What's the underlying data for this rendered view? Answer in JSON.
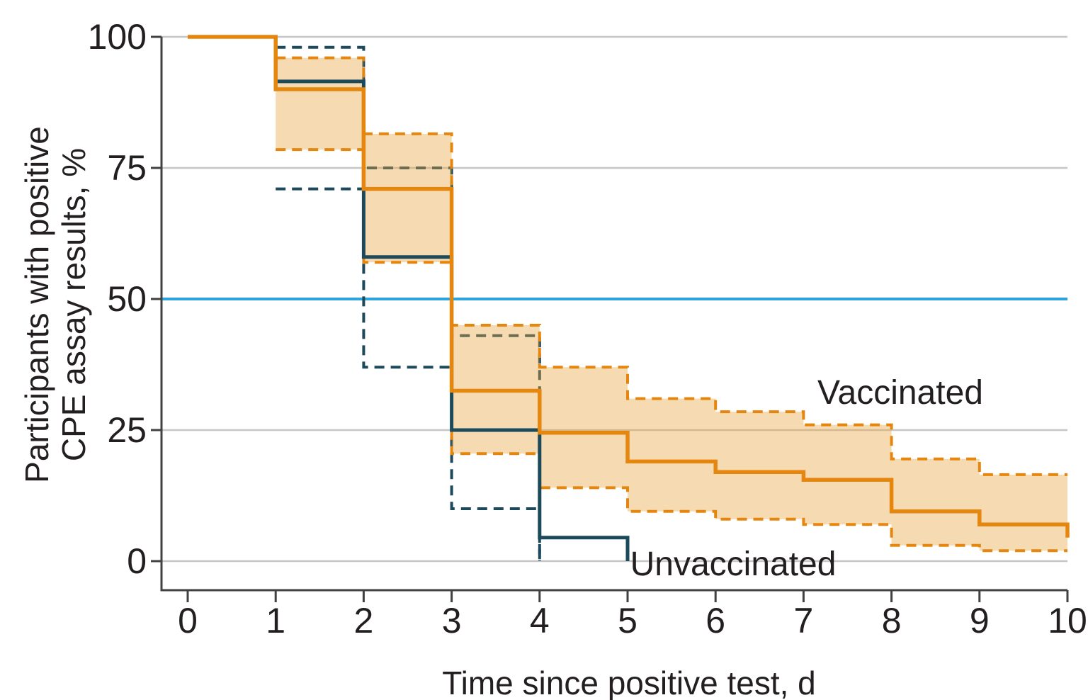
{
  "chart_data": {
    "type": "line",
    "subtype": "kaplan-meier-step",
    "title": "",
    "xlabel": "Time since positive test, d",
    "ylabel_lines": [
      "Participants with positive",
      "CPE assay results, %"
    ],
    "xlim": [
      0,
      10
    ],
    "ylim": [
      0,
      100
    ],
    "xticks": [
      0,
      1,
      2,
      3,
      4,
      5,
      6,
      7,
      8,
      9,
      10
    ],
    "yticks": [
      0,
      25,
      50,
      75,
      100
    ],
    "grid": "horizontal-on",
    "legend_position": "none",
    "reference_line": {
      "y": 50,
      "color": "#2FA3DC"
    },
    "series": [
      {
        "name": "Vaccinated",
        "role": "estimate",
        "line": "solid",
        "color": "#E5870F",
        "width": 5.5,
        "points": [
          [
            0,
            100
          ],
          [
            1,
            90
          ],
          [
            2,
            71
          ],
          [
            3,
            32.5
          ],
          [
            4,
            24.5
          ],
          [
            5,
            19
          ],
          [
            6,
            17
          ],
          [
            7,
            15.5
          ],
          [
            8,
            9.5
          ],
          [
            9,
            7
          ],
          [
            10,
            4.5
          ]
        ]
      },
      {
        "name": "Vaccinated 95% CI upper",
        "role": "ci-upper",
        "line": "dashed",
        "color": "#E5870F",
        "width": 4,
        "points": [
          [
            1,
            96
          ],
          [
            2,
            81.5
          ],
          [
            3,
            45
          ],
          [
            4,
            37
          ],
          [
            5,
            31
          ],
          [
            6,
            28.5
          ],
          [
            7,
            26
          ],
          [
            8,
            19.5
          ],
          [
            9,
            16.5
          ],
          [
            10,
            16.5
          ]
        ]
      },
      {
        "name": "Vaccinated 95% CI lower",
        "role": "ci-lower",
        "line": "dashed",
        "color": "#E5870F",
        "width": 4,
        "points": [
          [
            1,
            78.5
          ],
          [
            2,
            57
          ],
          [
            3,
            20.5
          ],
          [
            4,
            14
          ],
          [
            5,
            9.5
          ],
          [
            6,
            8
          ],
          [
            7,
            7
          ],
          [
            8,
            3
          ],
          [
            9,
            2
          ],
          [
            10,
            2
          ]
        ]
      },
      {
        "name": "Unvaccinated",
        "role": "estimate",
        "line": "solid",
        "color": "#1C4A5A",
        "width": 5,
        "points": [
          [
            0,
            100
          ],
          [
            1,
            91.5
          ],
          [
            2,
            58
          ],
          [
            3,
            25
          ],
          [
            4,
            4.5
          ],
          [
            5,
            0
          ]
        ]
      },
      {
        "name": "Unvaccinated 95% CI upper",
        "role": "ci-upper",
        "line": "dashed",
        "color": "#1C4A5A",
        "width": 4,
        "points": [
          [
            1,
            98
          ],
          [
            2,
            75
          ],
          [
            3,
            43
          ],
          [
            4,
            0
          ]
        ]
      },
      {
        "name": "Unvaccinated 95% CI lower",
        "role": "ci-lower",
        "line": "dashed",
        "color": "#1C4A5A",
        "width": 4,
        "points": [
          [
            1,
            71
          ],
          [
            2,
            37
          ],
          [
            3,
            10
          ],
          [
            4,
            0
          ]
        ]
      }
    ],
    "band": {
      "between": [
        "Vaccinated 95% CI upper",
        "Vaccinated 95% CI lower"
      ],
      "fill": "rgba(233,162,62,0.40)"
    },
    "annotations": [
      {
        "text": "Vaccinated",
        "x": 8.1,
        "y": 30.0
      },
      {
        "text": "Unvaccinated",
        "x": 6.2,
        "y": -2.7
      }
    ]
  },
  "colors": {
    "vaccinated": "#E5870F",
    "unvaccinated": "#1C4A5A",
    "band_fill": "rgba(233,162,62,0.40)",
    "reference": "#2FA3DC",
    "gridline": "#C6C6C6",
    "axis": "#414042",
    "text": "#231F20",
    "background": "#FFFFFF"
  }
}
